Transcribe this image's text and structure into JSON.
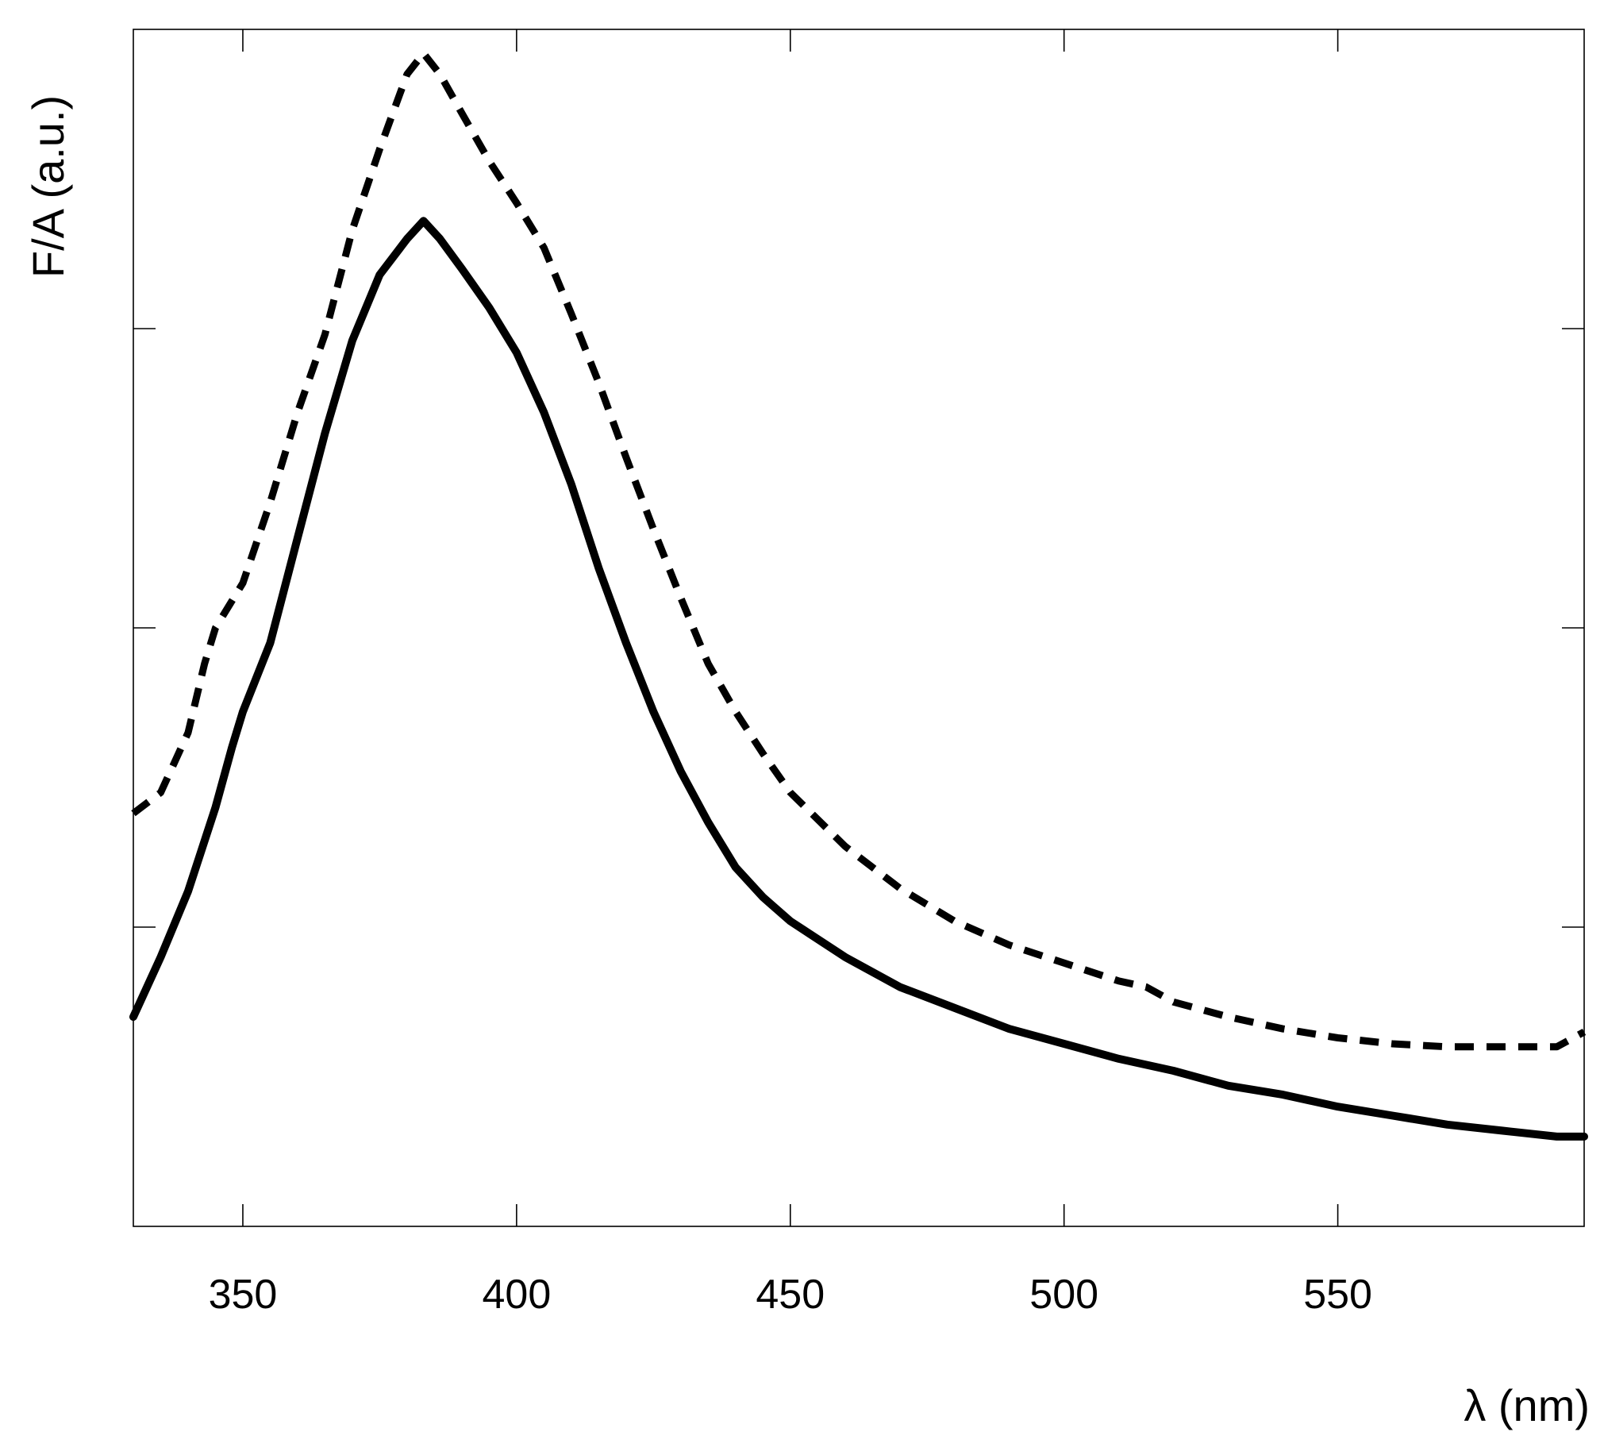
{
  "chart_data": {
    "type": "line",
    "title": "",
    "xlabel": "λ (nm)",
    "ylabel": "F/A (a.u.)",
    "xlim": [
      330,
      595
    ],
    "ylim": [
      0,
      4
    ],
    "x_ticks": [
      350,
      400,
      450,
      500,
      550
    ],
    "x_tick_labels": [
      "350",
      "400",
      "450",
      "500",
      "550"
    ],
    "y_ticks": [
      1,
      2,
      3
    ],
    "y_tick_labels_shown": false,
    "grid": false,
    "legend": "none",
    "series": [
      {
        "style": "dashed",
        "color": "#000000",
        "x": [
          330,
          335,
          340,
          343,
          345,
          350,
          355,
          360,
          365,
          370,
          375,
          380,
          383,
          386,
          390,
          395,
          400,
          405,
          410,
          415,
          420,
          425,
          430,
          435,
          440,
          445,
          450,
          455,
          460,
          465,
          470,
          480,
          490,
          500,
          510,
          515,
          520,
          530,
          540,
          550,
          560,
          570,
          580,
          585,
          590,
          595
        ],
        "y": [
          1.38,
          1.45,
          1.65,
          1.88,
          2.0,
          2.15,
          2.42,
          2.72,
          2.98,
          3.33,
          3.6,
          3.85,
          3.92,
          3.85,
          3.72,
          3.56,
          3.42,
          3.27,
          3.05,
          2.82,
          2.57,
          2.33,
          2.1,
          1.88,
          1.72,
          1.58,
          1.45,
          1.36,
          1.27,
          1.2,
          1.13,
          1.02,
          0.94,
          0.88,
          0.82,
          0.8,
          0.75,
          0.7,
          0.66,
          0.63,
          0.61,
          0.6,
          0.6,
          0.6,
          0.6,
          0.65
        ]
      },
      {
        "style": "solid",
        "color": "#000000",
        "x": [
          330,
          335,
          340,
          345,
          348,
          350,
          355,
          360,
          365,
          370,
          375,
          380,
          383,
          386,
          390,
          395,
          400,
          405,
          410,
          415,
          420,
          425,
          430,
          435,
          440,
          445,
          450,
          460,
          470,
          480,
          490,
          500,
          510,
          520,
          530,
          540,
          550,
          560,
          570,
          580,
          590,
          595
        ],
        "y": [
          0.7,
          0.9,
          1.12,
          1.4,
          1.6,
          1.72,
          1.95,
          2.3,
          2.65,
          2.96,
          3.18,
          3.3,
          3.36,
          3.3,
          3.2,
          3.07,
          2.92,
          2.72,
          2.48,
          2.2,
          1.95,
          1.72,
          1.52,
          1.35,
          1.2,
          1.1,
          1.02,
          0.9,
          0.8,
          0.73,
          0.66,
          0.61,
          0.56,
          0.52,
          0.47,
          0.44,
          0.4,
          0.37,
          0.34,
          0.32,
          0.3,
          0.3
        ]
      }
    ]
  }
}
